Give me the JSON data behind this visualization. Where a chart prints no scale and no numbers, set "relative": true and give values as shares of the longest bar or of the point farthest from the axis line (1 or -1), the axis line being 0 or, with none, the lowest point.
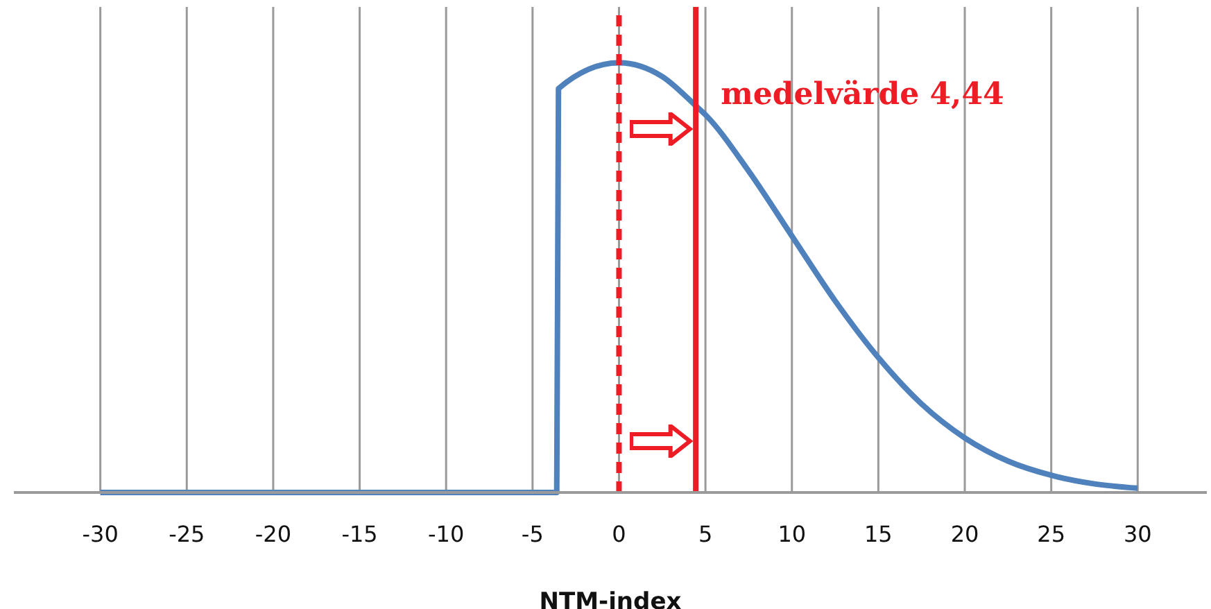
{
  "chart_data": {
    "type": "line",
    "relative": true,
    "xlabel": "NTM-index",
    "x": [
      -30,
      -3.6,
      -3.5,
      0,
      2.5,
      4.44,
      5,
      7.5,
      10,
      12.5,
      15,
      17.5,
      20,
      22.5,
      25,
      27.5,
      30
    ],
    "series": [
      {
        "color": "#4f81bd",
        "values": [
          0,
          0,
          0.94,
          1,
          0.968,
          0.9,
          0.879,
          0.748,
          0.597,
          0.446,
          0.314,
          0.206,
          0.127,
          0.073,
          0.04,
          0.02,
          0.01
        ]
      }
    ],
    "xlim": [
      -35,
      34
    ],
    "xticks": [
      -30,
      -25,
      -20,
      -15,
      -10,
      -5,
      0,
      5,
      10,
      15,
      20,
      25,
      30
    ],
    "grid": "x",
    "legend": false,
    "marker": "none",
    "line_style": "solid",
    "ref_lines": [
      {
        "axis": "x",
        "value": 0,
        "label": null,
        "color": "#ee1c25",
        "line_style": "dashed"
      },
      {
        "axis": "x",
        "value": 4.44,
        "label": "medelvärde 4,44",
        "color": "#ee1c25",
        "line_style": "solid"
      }
    ]
  }
}
